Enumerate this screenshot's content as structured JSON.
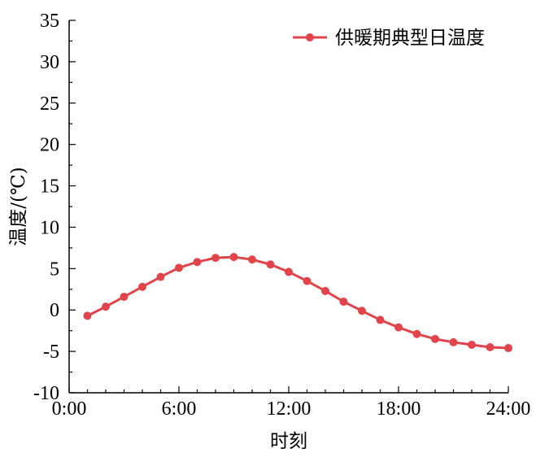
{
  "chart_data": {
    "type": "line",
    "xlabel": "时刻",
    "ylabel": "温度/(℃)",
    "xlim": [
      0,
      24
    ],
    "ylim": [
      -10,
      35
    ],
    "x_ticks": [
      0,
      6,
      12,
      18,
      24
    ],
    "x_tick_labels": [
      "0:00",
      "6:00",
      "12:00",
      "18:00",
      "24:00"
    ],
    "y_ticks": [
      -10,
      -5,
      0,
      5,
      10,
      15,
      20,
      25,
      30,
      35
    ],
    "y_tick_labels": [
      "-10",
      "-5",
      "0",
      "5",
      "10",
      "15",
      "20",
      "25",
      "30",
      "35"
    ],
    "grid": false,
    "legend_position": "top-right",
    "series": [
      {
        "name": "供暖期典型日温度",
        "color": "#e0454c",
        "marker": "circle",
        "x": [
          1,
          2,
          3,
          4,
          5,
          6,
          7,
          8,
          9,
          10,
          11,
          12,
          13,
          14,
          15,
          16,
          17,
          18,
          19,
          20,
          21,
          22,
          23,
          24
        ],
        "y": [
          -0.7,
          0.4,
          1.6,
          2.8,
          4.0,
          5.1,
          5.8,
          6.3,
          6.4,
          6.1,
          5.5,
          4.6,
          3.5,
          2.3,
          1.0,
          -0.1,
          -1.2,
          -2.1,
          -2.9,
          -3.5,
          -3.9,
          -4.2,
          -4.5,
          -4.6
        ]
      }
    ]
  }
}
